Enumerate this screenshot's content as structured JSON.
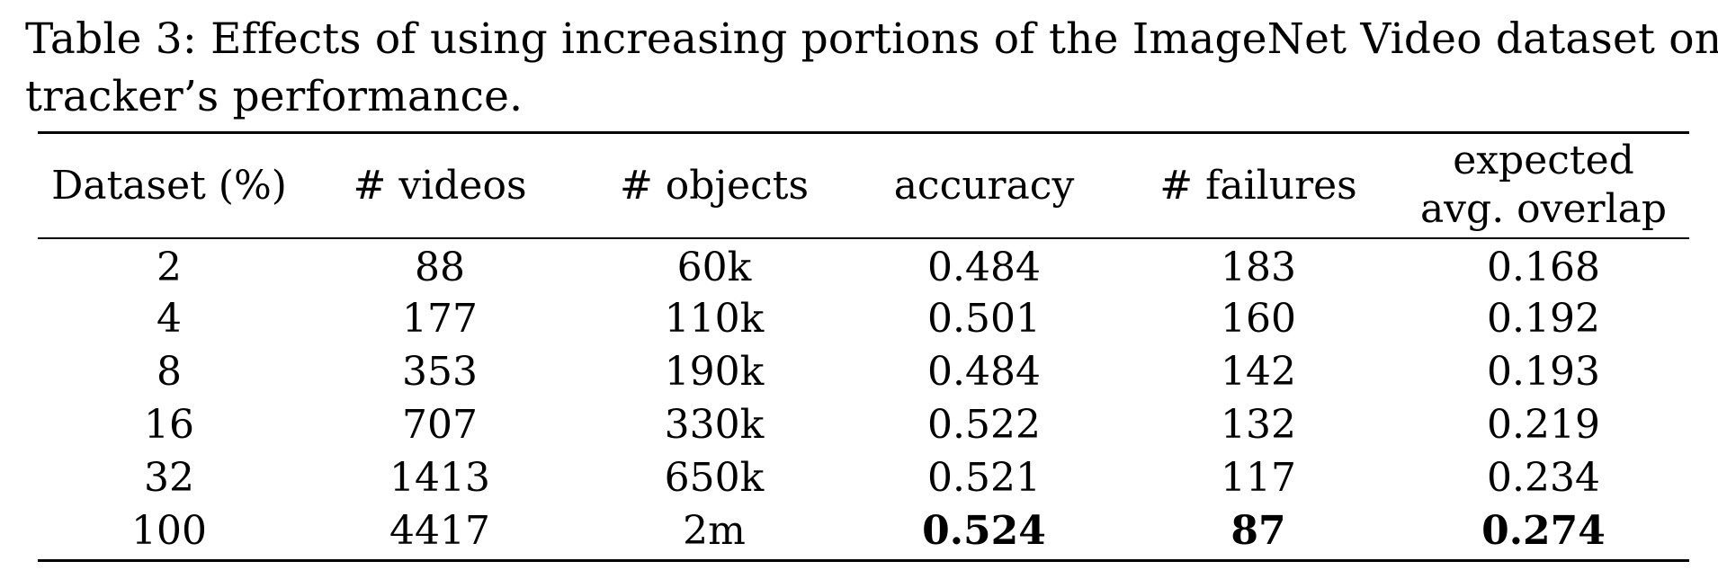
{
  "caption": {
    "line1": "Table 3: Effects of using increasing portions of the ImageNet Video dataset on",
    "line2": "tracker’s performance."
  },
  "table": {
    "headers": [
      {
        "line1": "Dataset (%)",
        "line2": ""
      },
      {
        "line1": "# videos",
        "line2": ""
      },
      {
        "line1": "# objects",
        "line2": ""
      },
      {
        "line1": "accuracy",
        "line2": ""
      },
      {
        "line1": "# failures",
        "line2": ""
      },
      {
        "line1": "expected",
        "line2": "avg. overlap"
      }
    ],
    "rows": [
      [
        "2",
        "88",
        "60k",
        "0.484",
        "183",
        "0.168"
      ],
      [
        "4",
        "177",
        "110k",
        "0.501",
        "160",
        "0.192"
      ],
      [
        "8",
        "353",
        "190k",
        "0.484",
        "142",
        "0.193"
      ],
      [
        "16",
        "707",
        "330k",
        "0.522",
        "132",
        "0.219"
      ],
      [
        "32",
        "1413",
        "650k",
        "0.521",
        "117",
        "0.234"
      ],
      [
        "100",
        "4417",
        "2m",
        "0.524",
        "87",
        "0.274"
      ]
    ],
    "bold_cells": [
      [
        5,
        3
      ],
      [
        5,
        4
      ],
      [
        5,
        5
      ]
    ]
  }
}
